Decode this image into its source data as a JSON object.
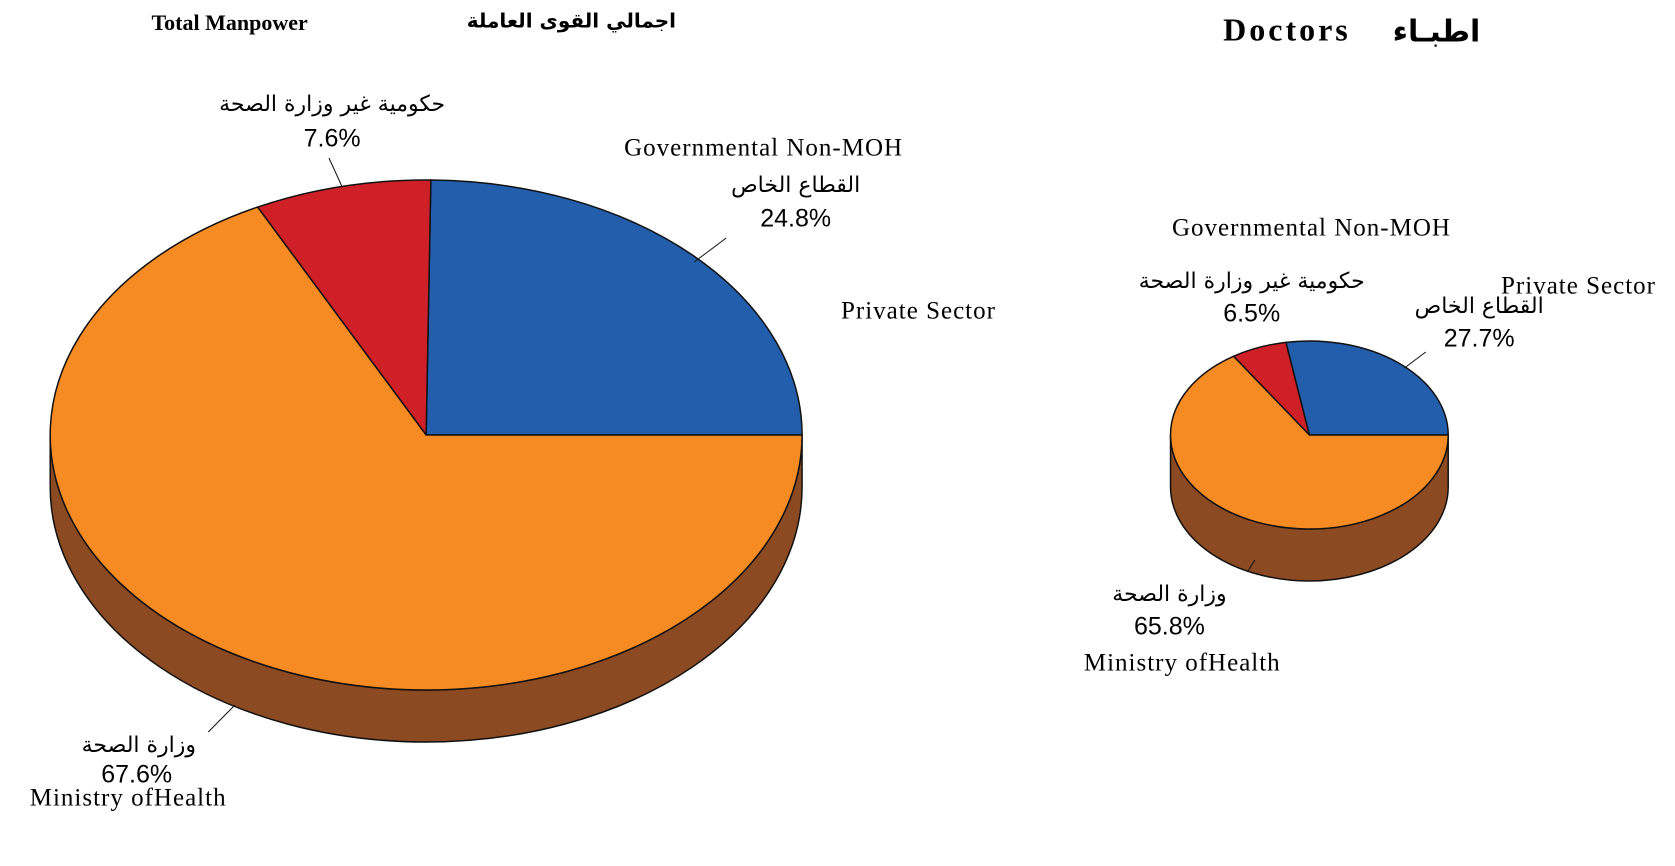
{
  "chart_data": [
    {
      "type": "pie3d",
      "title": "Total Manpower",
      "title_ar": "اجمالي القوى العاملة",
      "slices": [
        {
          "name_ar": "القطاع الخاص",
          "name_en": "Governmental Non-MOH",
          "value": 24.8,
          "value_label": "24.8%",
          "color": "#235ead",
          "side_color": "#153a70"
        },
        {
          "name_ar": "حكومية غير وزارة الصحة",
          "value": 7.6,
          "value_label": "7.6%",
          "color": "#cf2027",
          "side_color": "#7a1316"
        },
        {
          "name_ar": "وزارة الصحة",
          "name_en": "Ministry ofHealth",
          "value": 67.6,
          "value_label": "67.6%",
          "color": "#f68b23",
          "side_color": "#8b4a22"
        }
      ],
      "extra_label": "Private Sector"
    },
    {
      "type": "pie3d",
      "title": "Doctors",
      "title_ar": "اطبـاء",
      "slices": [
        {
          "name_ar": "القطاع الخاص",
          "name_en": "Private Sector",
          "value": 27.7,
          "value_label": "27.7%",
          "color": "#235ead",
          "side_color": "#153a70"
        },
        {
          "name_ar": "حكومية غير وزارة الصحة",
          "name_en": "Governmental Non-MOH",
          "value": 6.5,
          "value_label": "6.5%",
          "color": "#cf2027",
          "side_color": "#7a1316"
        },
        {
          "name_ar": "وزارة الصحة",
          "name_en": "Ministry ofHealth",
          "value": 65.8,
          "value_label": "65.8%",
          "color": "#f68b23",
          "side_color": "#8b4a22"
        }
      ]
    }
  ]
}
